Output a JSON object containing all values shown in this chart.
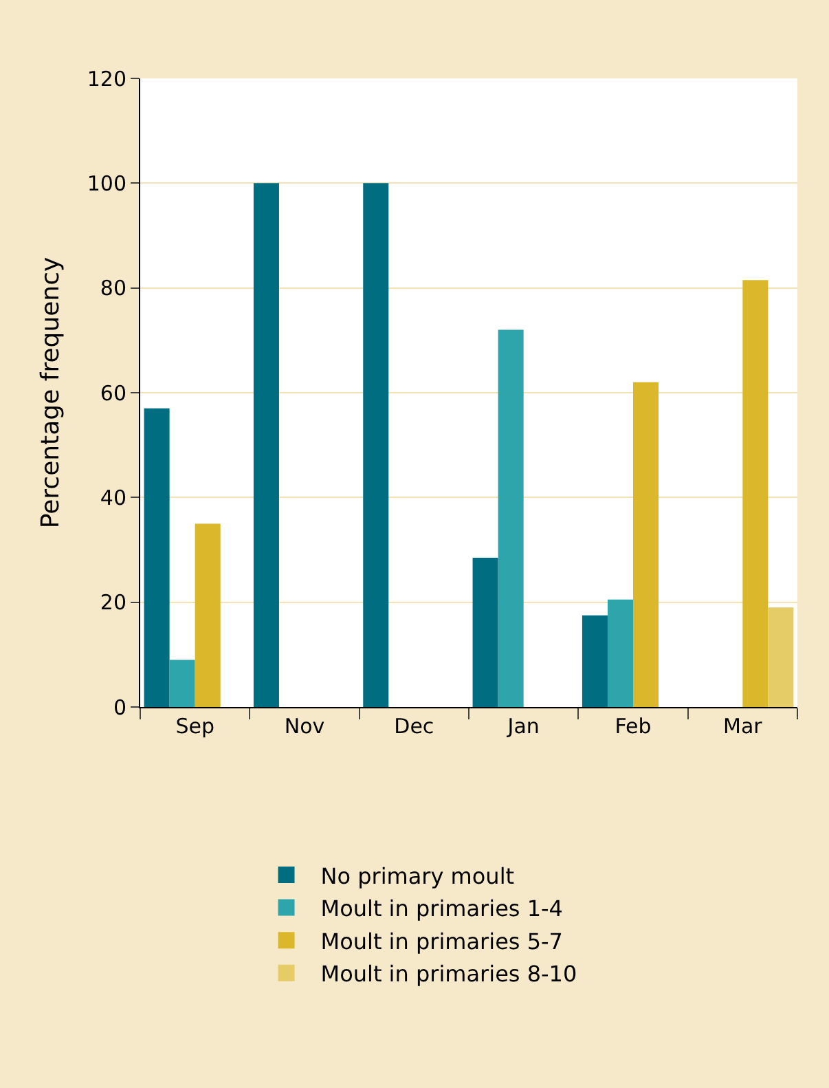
{
  "chart_data": {
    "type": "bar",
    "ylabel": "Percentage frequency",
    "categories": [
      "Sep",
      "Nov",
      "Dec",
      "Jan",
      "Feb",
      "Mar"
    ],
    "series": [
      {
        "name": "No primary moult",
        "color": "#006d80",
        "values": [
          57,
          100,
          100,
          28.5,
          17.5,
          null
        ]
      },
      {
        "name": "Moult in primaries 1-4",
        "color": "#2ea5aa",
        "values": [
          9,
          null,
          null,
          72,
          20.5,
          null
        ]
      },
      {
        "name": "Moult in primaries 5-7",
        "color": "#dbb82b",
        "values": [
          35,
          null,
          null,
          null,
          62,
          81.5
        ]
      },
      {
        "name": "Moult in primaries 8-10",
        "color": "#e6cc66",
        "values": [
          null,
          null,
          null,
          null,
          null,
          19
        ]
      }
    ],
    "ylim": [
      0,
      120
    ],
    "yticks": [
      0,
      20,
      40,
      60,
      80,
      100,
      120
    ],
    "grid": "y",
    "legend": "bottom"
  }
}
